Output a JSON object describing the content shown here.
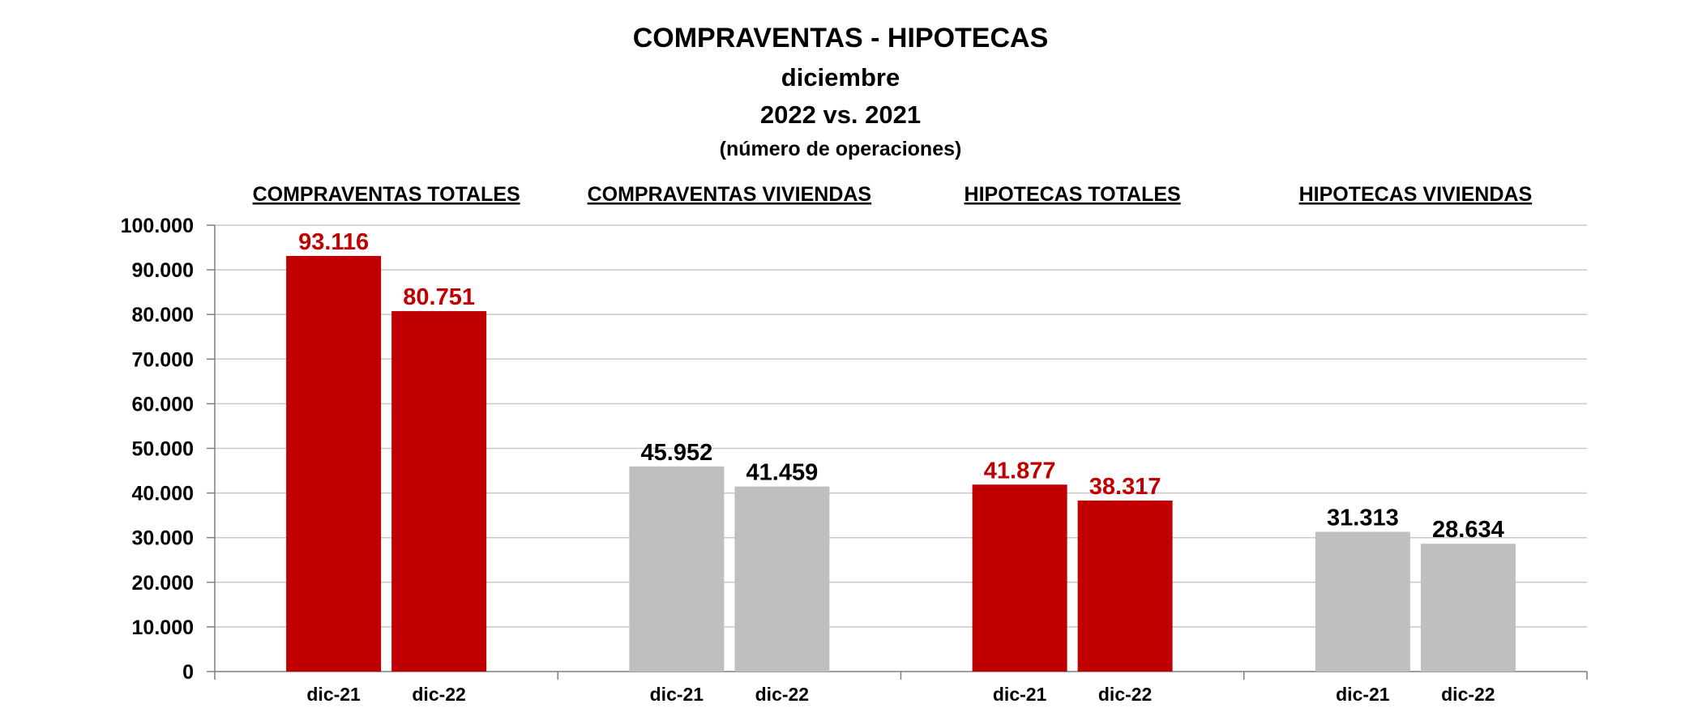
{
  "chart_data": {
    "type": "bar",
    "title": [
      "COMPRAVENTAS - HIPOTECAS",
      "diciembre",
      "2022 vs. 2021",
      "(número de operaciones)"
    ],
    "xlabel": "",
    "ylabel": "",
    "ylim": [
      0,
      100000
    ],
    "yticks": [
      0,
      10000,
      20000,
      30000,
      40000,
      50000,
      60000,
      70000,
      80000,
      90000,
      100000
    ],
    "ytick_labels": [
      "0",
      "10.000",
      "20.000",
      "30.000",
      "40.000",
      "50.000",
      "60.000",
      "70.000",
      "80.000",
      "90.000",
      "100.000"
    ],
    "grid": true,
    "legend": "none",
    "groups": [
      {
        "label": "COMPRAVENTAS TOTALES",
        "color": "#c00000",
        "label_color": "#c00000",
        "categories": [
          "dic-21",
          "dic-22"
        ],
        "values": [
          93116,
          80751
        ],
        "value_labels": [
          "93.116",
          "80.751"
        ]
      },
      {
        "label": "COMPRAVENTAS VIVIENDAS",
        "color": "#bfbfbf",
        "label_color": "#000000",
        "categories": [
          "dic-21",
          "dic-22"
        ],
        "values": [
          45952,
          41459
        ],
        "value_labels": [
          "45.952",
          "41.459"
        ]
      },
      {
        "label": "HIPOTECAS TOTALES",
        "color": "#c00000",
        "label_color": "#c00000",
        "categories": [
          "dic-21",
          "dic-22"
        ],
        "values": [
          41877,
          38317
        ],
        "value_labels": [
          "41.877",
          "38.317"
        ]
      },
      {
        "label": "HIPOTECAS VIVIENDAS",
        "color": "#bfbfbf",
        "label_color": "#000000",
        "categories": [
          "dic-21",
          "dic-22"
        ],
        "values": [
          31313,
          28634
        ],
        "value_labels": [
          "31.313",
          "28.634"
        ]
      }
    ]
  }
}
